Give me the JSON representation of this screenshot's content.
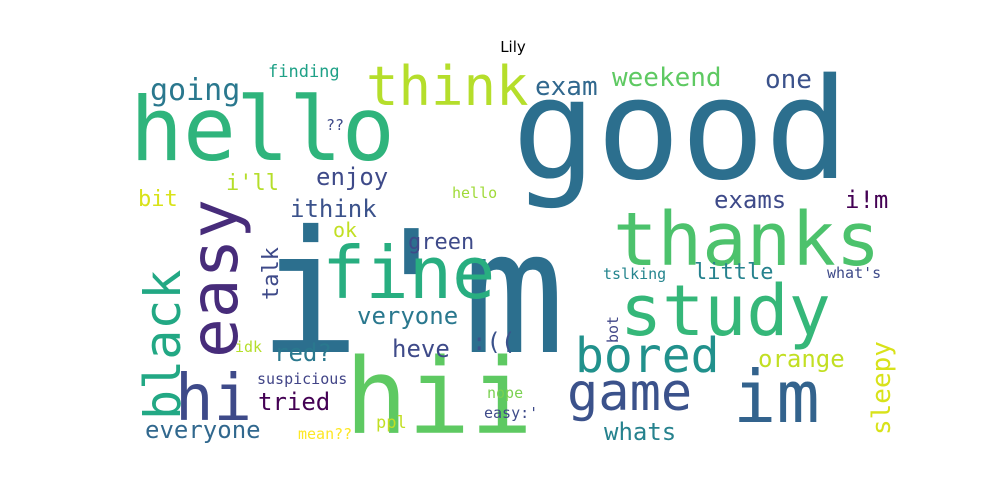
{
  "chart_data": {
    "type": "wordcloud",
    "title": "Lily",
    "colormap": "viridis",
    "words": [
      {
        "text": "good",
        "color": "#2c6f8e"
      },
      {
        "text": "i'm",
        "color": "#2c6f8e"
      },
      {
        "text": "hello",
        "color": "#2fb47c"
      },
      {
        "text": "hii",
        "color": "#5ec962"
      },
      {
        "text": "thanks",
        "color": "#4cc26c"
      },
      {
        "text": "study",
        "color": "#35b779"
      },
      {
        "text": "fine",
        "color": "#28ae80"
      },
      {
        "text": "easy",
        "color": "#472c7a"
      },
      {
        "text": "im",
        "color": "#33638d"
      },
      {
        "text": "hi",
        "color": "#3e4a89"
      },
      {
        "text": "think",
        "color": "#b5de2b"
      },
      {
        "text": "black",
        "color": "#22a884"
      },
      {
        "text": "game",
        "color": "#3b528b"
      },
      {
        "text": "bored",
        "color": "#21918c"
      },
      {
        "text": "going",
        "color": "#2a788e"
      },
      {
        "text": "exam",
        "color": "#31688e"
      },
      {
        "text": "weekend",
        "color": "#5ec962"
      },
      {
        "text": "one",
        "color": "#3b528b"
      },
      {
        "text": "finding",
        "color": "#1fa187"
      },
      {
        "text": "??",
        "color": "#3e4a89"
      },
      {
        "text": "i'll",
        "color": "#b5de2b"
      },
      {
        "text": "enjoy",
        "color": "#3e4a89"
      },
      {
        "text": "bit",
        "color": "#d8e219"
      },
      {
        "text": "hello",
        "color": "#a0da39"
      },
      {
        "text": "ithink",
        "color": "#3b528b"
      },
      {
        "text": "exams",
        "color": "#3e4a89"
      },
      {
        "text": "i!m",
        "color": "#440154"
      },
      {
        "text": "ok",
        "color": "#c2df23"
      },
      {
        "text": "green",
        "color": "#3e4a89"
      },
      {
        "text": "talk",
        "color": "#3e4a89"
      },
      {
        "text": "tslking",
        "color": "#25858e"
      },
      {
        "text": "little",
        "color": "#26828e"
      },
      {
        "text": "what's",
        "color": "#3e4a89"
      },
      {
        "text": "veryone",
        "color": "#2a788e"
      },
      {
        "text": "bot",
        "color": "#404688"
      },
      {
        "text": "sleepy",
        "color": "#d8e219"
      },
      {
        "text": ":((",
        "color": "#3b528b"
      },
      {
        "text": "heve",
        "color": "#3e4a89"
      },
      {
        "text": "red?",
        "color": "#2a788e"
      },
      {
        "text": "orange",
        "color": "#c2df23"
      },
      {
        "text": "idk",
        "color": "#b5de2b"
      },
      {
        "text": "suspicious",
        "color": "#414487"
      },
      {
        "text": "tried",
        "color": "#440154"
      },
      {
        "text": "everyone",
        "color": "#31688e"
      },
      {
        "text": "mean??",
        "color": "#fde725"
      },
      {
        "text": "ppl",
        "color": "#c2df23"
      },
      {
        "text": "nope",
        "color": "#7ad151"
      },
      {
        "text": "easy:'",
        "color": "#3e4a89"
      },
      {
        "text": "whats",
        "color": "#26828e"
      }
    ]
  }
}
